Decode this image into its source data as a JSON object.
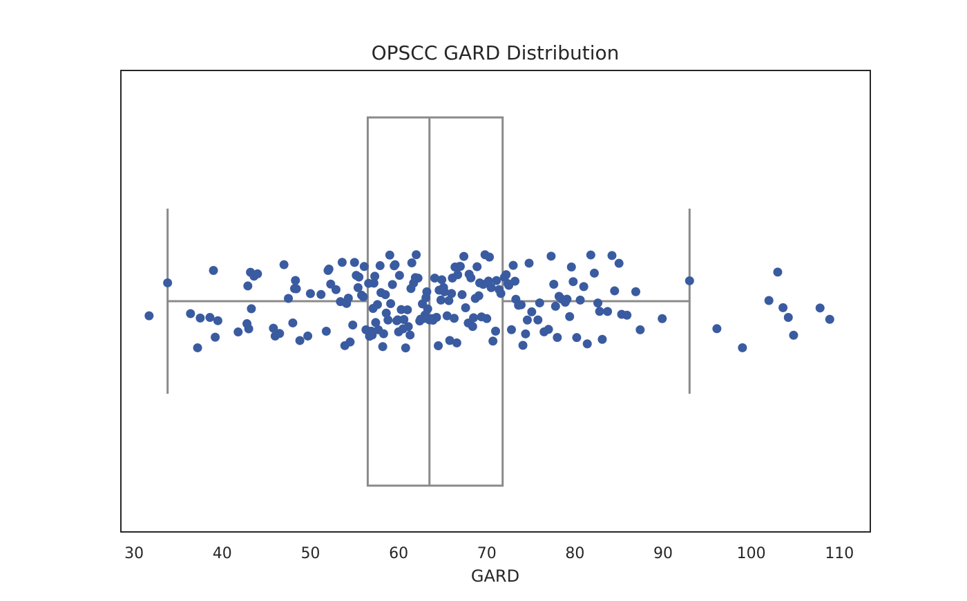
{
  "chart_data": {
    "type": "scatter",
    "title": "OPSCC GARD Distribution",
    "xlabel": "GARD",
    "ylabel": "",
    "xlim": [
      28.5,
      113.5
    ],
    "x_ticks": [
      30,
      40,
      50,
      60,
      70,
      80,
      90,
      100,
      110
    ],
    "grid": false,
    "colors": {
      "points": "#3A5BA0",
      "box": "#8A8A8A",
      "frame": "#262626"
    },
    "boxplot": {
      "whisker_low": 33.8,
      "q1": 56.5,
      "median": 63.5,
      "q3": 71.8,
      "whisker_high": 93.0
    },
    "points": [
      31.7,
      33.8,
      36.4,
      37.2,
      37.5,
      38.6,
      39.0,
      39.2,
      39.5,
      41.8,
      42.8,
      42.9,
      43.0,
      43.2,
      43.3,
      43.6,
      44.0,
      45.8,
      46.0,
      46.5,
      47.0,
      47.5,
      48.0,
      48.2,
      48.3,
      48.4,
      48.8,
      49.7,
      50.0,
      51.2,
      51.8,
      52.0,
      52.1,
      52.3,
      52.9,
      53.4,
      53.9,
      54.3,
      54.8,
      55.2,
      55.8,
      56.7,
      56.9,
      57.2,
      57.6,
      58.3,
      58.8,
      59.6,
      60.3,
      61.5,
      62.5,
      63.2,
      63.5,
      64.1,
      64.6,
      65.2,
      66.0,
      66.6,
      67.2,
      67.4,
      68.2,
      68.9,
      69.4,
      69.8,
      70.2,
      71.1,
      71.6,
      72.2,
      72.8,
      73.3,
      73.9,
      74.4,
      75.1,
      75.8,
      77.3,
      77.8,
      78.2,
      78.9,
      79.4,
      79.8,
      80.6,
      81.4,
      82.2,
      82.6,
      83.1,
      83.7,
      84.2,
      85.3,
      85.9,
      86.9,
      87.4,
      89.9,
      93.0,
      96.1,
      99.0,
      102.0,
      103.0,
      103.6,
      104.2,
      104.8,
      107.8,
      108.9,
      53.6,
      54.5,
      55.0,
      55.5,
      56.0,
      56.3,
      56.6,
      57.0,
      57.3,
      57.7,
      58.0,
      58.5,
      59.0,
      59.3,
      59.8,
      60.0,
      60.5,
      60.8,
      61.0,
      61.3,
      61.7,
      62.0,
      62.2,
      62.7,
      63.0,
      63.8,
      64.3,
      64.8,
      65.5,
      65.8,
      66.3,
      66.9,
      67.6,
      68.0,
      68.5,
      69.1,
      69.6,
      70.0,
      70.5,
      71.4,
      72.0,
      72.5,
      73.0,
      73.6,
      74.1,
      74.6,
      76.0,
      76.5,
      77.0,
      77.6,
      78.5,
      79.1,
      79.6,
      80.2,
      81.0,
      81.8,
      82.8,
      84.5,
      85.0,
      56.1,
      57.9,
      59.5,
      61.1,
      62.4,
      63.9,
      65.1,
      66.7,
      68.7,
      70.7,
      72.4,
      74.8,
      78.0,
      55.4,
      58.2,
      60.1,
      61.9,
      63.3,
      64.5,
      66.1,
      67.9,
      69.2,
      71.0,
      73.2,
      54.1,
      57.4,
      59.1,
      60.6,
      62.9,
      64.9,
      66.4,
      68.4,
      70.3,
      67.0,
      65.7,
      63.1,
      61.4,
      59.9,
      58.6,
      57.1
    ]
  }
}
